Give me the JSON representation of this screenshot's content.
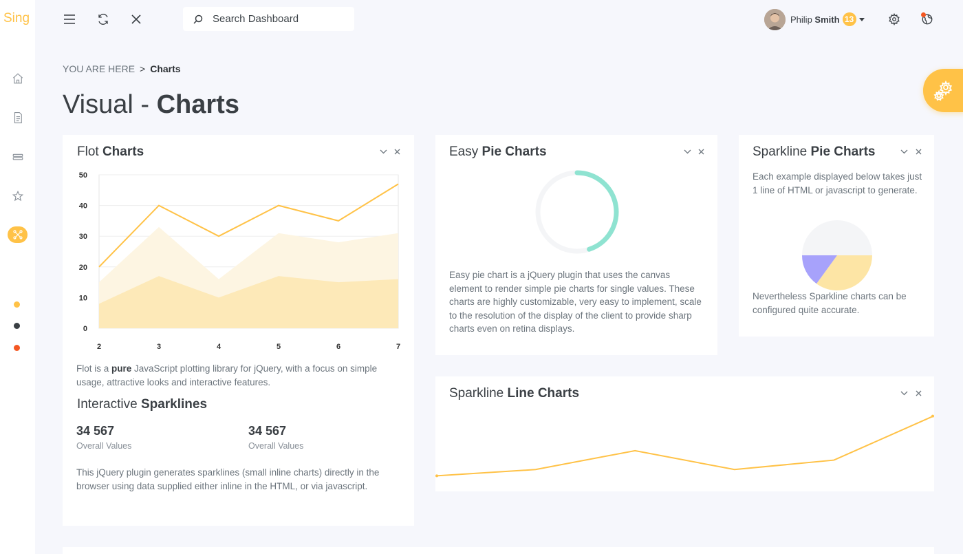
{
  "app": {
    "logo_text": "Sing"
  },
  "sidebar": {
    "items": [
      {
        "icon": "home-icon"
      },
      {
        "icon": "document-icon"
      },
      {
        "icon": "layers-icon"
      },
      {
        "icon": "star-icon"
      },
      {
        "icon": "charts-icon",
        "active": true
      }
    ],
    "dots": [
      "#ffc247",
      "#3a3f44",
      "#f45722"
    ]
  },
  "header": {
    "search_placeholder": "Search Dashboard",
    "user": {
      "first_name": "Philip",
      "last_name": "Smith",
      "badge_count": "13"
    }
  },
  "breadcrumb": {
    "prefix": "YOU ARE HERE",
    "separator": ">",
    "current": "Charts"
  },
  "page": {
    "title_light": "Visual - ",
    "title_bold": "Charts"
  },
  "flot_card": {
    "title_light": "Flot ",
    "title_bold": "Charts",
    "desc_before": "Flot is a ",
    "desc_bold": "pure",
    "desc_after": " JavaScript plotting library for jQuery, with a focus on simple usage, attractive looks and interactive features.",
    "sparklines_title_light": "Interactive ",
    "sparklines_title_bold": "Sparklines",
    "stats": [
      {
        "value": "34 567",
        "label": "Overall Values"
      },
      {
        "value": "34 567",
        "label": "Overall Values"
      }
    ],
    "footer_text": "This jQuery plugin generates sparklines (small inline charts) directly in the browser using data supplied either inline in the HTML, or via javascript."
  },
  "easy_pie_card": {
    "title_light": "Easy ",
    "title_bold": "Pie Charts",
    "desc": "Easy pie chart is a jQuery plugin that uses the canvas element to render simple pie charts for single values. These charts are highly customizable, very easy to implement, scale to the resolution of the display of the client to provide sharp charts even on retina displays."
  },
  "sparkline_pie_card": {
    "title_light": "Sparkline ",
    "title_bold": "Pie Charts",
    "desc_top": "Each example displayed below takes just 1 line of HTML or javascript to generate.",
    "desc_bottom": "Nevertheless Sparkline charts can be configured quite accurate."
  },
  "sparkline_line_card": {
    "title_light": "Sparkline ",
    "title_bold": "Line Charts"
  },
  "colors": {
    "accent": "#ffc247",
    "teal": "#8fe3d1",
    "purple": "#a7a2fb",
    "pie_light": "#fde5a5",
    "pie_gray": "#f4f5f7"
  },
  "chart_data": [
    {
      "type": "area",
      "x": [
        2,
        3,
        4,
        5,
        6,
        7
      ],
      "xlim": [
        2,
        7
      ],
      "ylim": [
        0,
        50
      ],
      "y_ticks": [
        0,
        10,
        20,
        30,
        40,
        50
      ],
      "x_ticks": [
        2,
        3,
        4,
        5,
        6,
        7
      ],
      "grid": true,
      "series": [
        {
          "kind": "area",
          "color": "#fdf5e2",
          "values": [
            15,
            33,
            16,
            31,
            28,
            31
          ]
        },
        {
          "kind": "area",
          "color": "#fde9b8",
          "values": [
            8,
            17,
            10,
            17,
            15,
            16
          ]
        },
        {
          "kind": "line",
          "color": "#ffc247",
          "values": [
            20,
            40,
            30,
            40,
            35,
            47
          ]
        }
      ]
    },
    {
      "type": "pie",
      "variant": "donut",
      "value_percent": 45,
      "color": "#8fe3d1",
      "track_color": "#f4f5f7"
    },
    {
      "type": "pie",
      "slices": [
        {
          "value": 50,
          "color": "#f4f5f7"
        },
        {
          "value": 35,
          "color": "#fde5a5"
        },
        {
          "value": 15,
          "color": "#a7a2fb"
        }
      ]
    },
    {
      "type": "line",
      "values": [
        1,
        3,
        9,
        3,
        6,
        20
      ],
      "ylim": [
        0,
        21
      ],
      "color": "#ffc247"
    }
  ]
}
